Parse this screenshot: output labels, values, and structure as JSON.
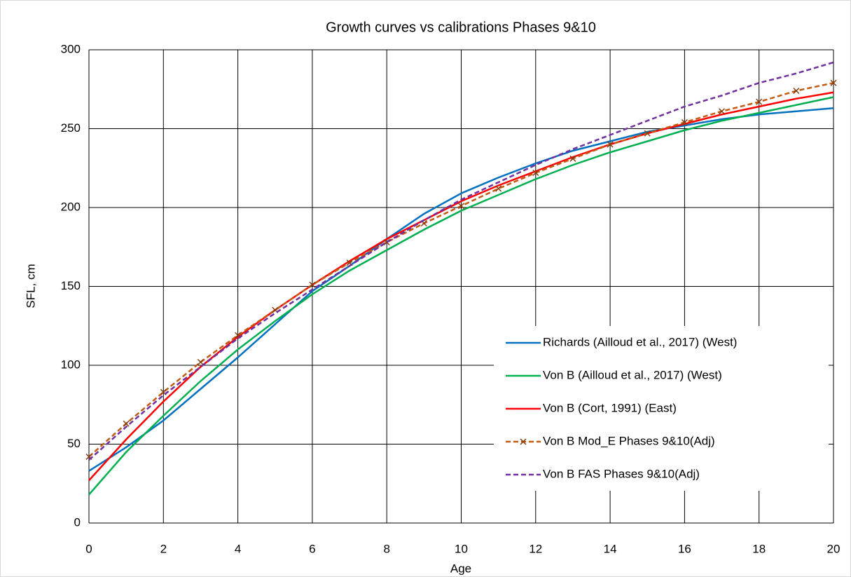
{
  "chart_data": {
    "type": "line",
    "title": "Growth curves vs calibrations Phases 9&10",
    "x_label": "Age",
    "y_label": "SFL, cm",
    "x": [
      0,
      1,
      2,
      3,
      4,
      5,
      6,
      7,
      8,
      9,
      10,
      11,
      12,
      13,
      14,
      15,
      16,
      17,
      18,
      19,
      20
    ],
    "xlim": [
      0,
      20
    ],
    "xticks": [
      0,
      2,
      4,
      6,
      8,
      10,
      12,
      14,
      16,
      18,
      20
    ],
    "ylim": [
      0,
      300
    ],
    "yticks": [
      0,
      50,
      100,
      150,
      200,
      250,
      300
    ],
    "grid": true,
    "legend": "right",
    "series": [
      {
        "name": "Richards (Ailloud et al., 2017) (West)",
        "color": "#0070c0",
        "style": "solid",
        "values": [
          33,
          48,
          65,
          85,
          105,
          126,
          147,
          163,
          180,
          196,
          209,
          219,
          228,
          236,
          242,
          248,
          252,
          256,
          259,
          261,
          263
        ]
      },
      {
        "name": "Von B (Ailloud et al., 2017) (West)",
        "color": "#00b050",
        "style": "solid",
        "values": [
          18,
          45,
          68,
          90,
          110,
          128,
          145,
          160,
          173,
          186,
          198,
          208,
          218,
          227,
          235,
          242,
          249,
          255,
          260,
          265,
          270
        ]
      },
      {
        "name": "Von B (Cort, 1991) (East)",
        "color": "#ff0000",
        "style": "solid",
        "values": [
          27,
          53,
          77,
          99,
          118,
          135,
          151,
          166,
          180,
          192,
          204,
          214,
          223,
          232,
          240,
          247,
          253,
          259,
          264,
          269,
          273
        ]
      },
      {
        "name": "Von B Mod_E Phases 9&10(Adj)",
        "color": "#c55a11",
        "style": "dashed",
        "marker": "x",
        "values": [
          42,
          63,
          83,
          102,
          119,
          135,
          151,
          165,
          178,
          190,
          201,
          212,
          222,
          231,
          240,
          247,
          254,
          261,
          267,
          274,
          279
        ]
      },
      {
        "name": "Von B FAS Phases 9&10(Adj)",
        "color": "#7030a0",
        "style": "dashed",
        "values": [
          40,
          61,
          81,
          99,
          117,
          133,
          148,
          163,
          178,
          192,
          205,
          216,
          227,
          237,
          246,
          255,
          264,
          271,
          279,
          285,
          292
        ]
      }
    ]
  }
}
